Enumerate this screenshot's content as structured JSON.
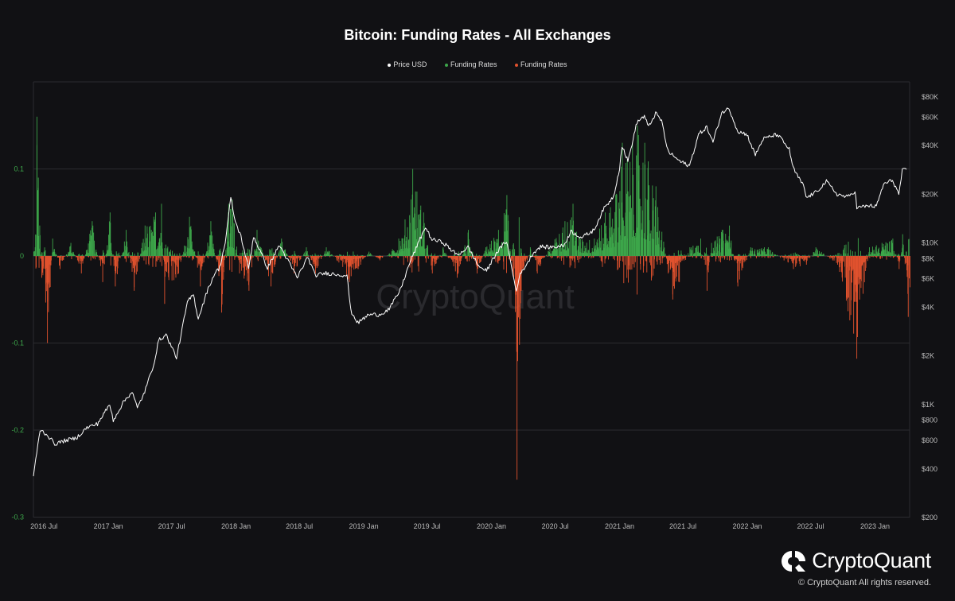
{
  "chart_data": {
    "type": "bar+line",
    "title": "Bitcoin: Funding Rates - All Exchanges",
    "legend": [
      {
        "name": "Price USD",
        "color": "#ffffff"
      },
      {
        "name": "Funding Rates",
        "color": "#3da64a"
      },
      {
        "name": "Funding Rates",
        "color": "#e0522e"
      }
    ],
    "legend_position": "top-center",
    "x_axis": {
      "range": [
        "2016-06-01",
        "2023-04-10"
      ],
      "ticks": [
        {
          "date": "2016-07-01",
          "label": "2016 Jul"
        },
        {
          "date": "2017-01-01",
          "label": "2017 Jan"
        },
        {
          "date": "2017-07-01",
          "label": "2017 Jul"
        },
        {
          "date": "2018-01-01",
          "label": "2018 Jan"
        },
        {
          "date": "2018-07-01",
          "label": "2018 Jul"
        },
        {
          "date": "2019-01-01",
          "label": "2019 Jan"
        },
        {
          "date": "2019-07-01",
          "label": "2019 Jul"
        },
        {
          "date": "2020-01-01",
          "label": "2020 Jan"
        },
        {
          "date": "2020-07-01",
          "label": "2020 Jul"
        },
        {
          "date": "2021-01-01",
          "label": "2021 Jan"
        },
        {
          "date": "2021-07-01",
          "label": "2021 Jul"
        },
        {
          "date": "2022-01-01",
          "label": "2022 Jan"
        },
        {
          "date": "2022-07-01",
          "label": "2022 Jul"
        },
        {
          "date": "2023-01-01",
          "label": "2023 Jan"
        }
      ]
    },
    "y_left": {
      "range": [
        -0.3,
        0.2
      ],
      "ticks": [
        {
          "value": 0.1,
          "label": "0.1"
        },
        {
          "value": 0,
          "label": "0"
        },
        {
          "value": -0.1,
          "label": "-0.1"
        },
        {
          "value": -0.2,
          "label": "-0.2"
        },
        {
          "value": -0.3,
          "label": "-0.3"
        }
      ]
    },
    "y_right": {
      "scale": "log",
      "range": [
        200,
        80000
      ],
      "ticks": [
        {
          "value": 80000,
          "label": "$80K"
        },
        {
          "value": 60000,
          "label": "$60K"
        },
        {
          "value": 40000,
          "label": "$40K"
        },
        {
          "value": 20000,
          "label": "$20K"
        },
        {
          "value": 10000,
          "label": "$10K"
        },
        {
          "value": 8000,
          "label": "$8K"
        },
        {
          "value": 6000,
          "label": "$6K"
        },
        {
          "value": 4000,
          "label": "$4K"
        },
        {
          "value": 2000,
          "label": "$2K"
        },
        {
          "value": 1000,
          "label": "$1K"
        },
        {
          "value": 800,
          "label": "$800"
        },
        {
          "value": 600,
          "label": "$600"
        },
        {
          "value": 400,
          "label": "$400"
        },
        {
          "value": 200,
          "label": "$200"
        }
      ]
    },
    "grid": true,
    "watermark": "CryptoQuant",
    "price_series": {
      "name": "Price USD",
      "points": [
        [
          "2016-06-01",
          360
        ],
        [
          "2016-06-20",
          700
        ],
        [
          "2016-07-10",
          650
        ],
        [
          "2016-08-01",
          570
        ],
        [
          "2016-09-01",
          600
        ],
        [
          "2016-10-01",
          620
        ],
        [
          "2016-11-01",
          720
        ],
        [
          "2016-12-01",
          760
        ],
        [
          "2017-01-05",
          1000
        ],
        [
          "2017-01-15",
          800
        ],
        [
          "2017-02-15",
          1050
        ],
        [
          "2017-03-10",
          1200
        ],
        [
          "2017-03-25",
          950
        ],
        [
          "2017-04-15",
          1200
        ],
        [
          "2017-05-10",
          1750
        ],
        [
          "2017-05-25",
          2500
        ],
        [
          "2017-06-15",
          2700
        ],
        [
          "2017-07-15",
          1950
        ],
        [
          "2017-08-15",
          4300
        ],
        [
          "2017-09-01",
          4800
        ],
        [
          "2017-09-15",
          3400
        ],
        [
          "2017-10-10",
          5000
        ],
        [
          "2017-11-01",
          6500
        ],
        [
          "2017-11-15",
          7000
        ],
        [
          "2017-12-01",
          10000
        ],
        [
          "2017-12-17",
          19000
        ],
        [
          "2017-12-30",
          13500
        ],
        [
          "2018-01-15",
          11000
        ],
        [
          "2018-02-06",
          6900
        ],
        [
          "2018-02-20",
          11000
        ],
        [
          "2018-03-10",
          9000
        ],
        [
          "2018-04-01",
          7000
        ],
        [
          "2018-05-05",
          9700
        ],
        [
          "2018-06-25",
          6100
        ],
        [
          "2018-07-25",
          8200
        ],
        [
          "2018-08-15",
          6300
        ],
        [
          "2018-09-15",
          6500
        ],
        [
          "2018-10-15",
          6400
        ],
        [
          "2018-11-14",
          6300
        ],
        [
          "2018-11-25",
          3800
        ],
        [
          "2018-12-15",
          3200
        ],
        [
          "2019-01-15",
          3600
        ],
        [
          "2019-02-15",
          3600
        ],
        [
          "2019-03-15",
          3900
        ],
        [
          "2019-04-15",
          5100
        ],
        [
          "2019-05-15",
          7800
        ],
        [
          "2019-06-26",
          12500
        ],
        [
          "2019-07-15",
          10500
        ],
        [
          "2019-08-15",
          10100
        ],
        [
          "2019-09-25",
          8400
        ],
        [
          "2019-10-26",
          9400
        ],
        [
          "2019-11-25",
          7200
        ],
        [
          "2019-12-18",
          6700
        ],
        [
          "2020-01-15",
          8700
        ],
        [
          "2020-02-13",
          10300
        ],
        [
          "2020-03-12",
          5000
        ],
        [
          "2020-03-20",
          6200
        ],
        [
          "2020-04-30",
          8700
        ],
        [
          "2020-05-20",
          9500
        ],
        [
          "2020-06-15",
          9400
        ],
        [
          "2020-07-25",
          9600
        ],
        [
          "2020-08-15",
          11800
        ],
        [
          "2020-09-15",
          10800
        ],
        [
          "2020-10-20",
          12000
        ],
        [
          "2020-11-15",
          16000
        ],
        [
          "2020-12-15",
          19500
        ],
        [
          "2021-01-01",
          29000
        ],
        [
          "2021-01-08",
          40000
        ],
        [
          "2021-01-25",
          32000
        ],
        [
          "2021-02-20",
          56000
        ],
        [
          "2021-03-13",
          61000
        ],
        [
          "2021-03-25",
          52000
        ],
        [
          "2021-04-14",
          63500
        ],
        [
          "2021-05-01",
          57000
        ],
        [
          "2021-05-19",
          37000
        ],
        [
          "2021-06-22",
          32000
        ],
        [
          "2021-07-20",
          30000
        ],
        [
          "2021-08-15",
          47000
        ],
        [
          "2021-09-07",
          52000
        ],
        [
          "2021-09-25",
          42000
        ],
        [
          "2021-10-20",
          64000
        ],
        [
          "2021-11-10",
          68000
        ],
        [
          "2021-12-05",
          49000
        ],
        [
          "2021-12-31",
          47000
        ],
        [
          "2022-01-24",
          35000
        ],
        [
          "2022-02-15",
          44000
        ],
        [
          "2022-03-28",
          47000
        ],
        [
          "2022-05-01",
          38000
        ],
        [
          "2022-05-12",
          29000
        ],
        [
          "2022-06-13",
          22000
        ],
        [
          "2022-06-18",
          19000
        ],
        [
          "2022-07-15",
          20500
        ],
        [
          "2022-08-15",
          24000
        ],
        [
          "2022-09-15",
          20000
        ],
        [
          "2022-10-15",
          19200
        ],
        [
          "2022-11-05",
          21000
        ],
        [
          "2022-11-10",
          16500
        ],
        [
          "2022-12-15",
          17000
        ],
        [
          "2023-01-05",
          16800
        ],
        [
          "2023-01-25",
          23000
        ],
        [
          "2023-02-20",
          24500
        ],
        [
          "2023-03-10",
          20000
        ],
        [
          "2023-03-20",
          28000
        ],
        [
          "2023-04-01",
          28500
        ]
      ]
    },
    "funding_rates_series": {
      "name": "Funding Rates",
      "positive_color": "#3da64a",
      "negative_color": "#e0522e",
      "points": [
        [
          "2016-06-05",
          0.01
        ],
        [
          "2016-06-10",
          0.16
        ],
        [
          "2016-06-14",
          0.09
        ],
        [
          "2016-06-18",
          0.035
        ],
        [
          "2016-06-24",
          -0.025
        ],
        [
          "2016-07-10",
          -0.1
        ],
        [
          "2016-07-25",
          0.02
        ],
        [
          "2016-08-15",
          -0.015
        ],
        [
          "2016-09-15",
          0.015
        ],
        [
          "2016-10-15",
          -0.02
        ],
        [
          "2016-11-15",
          0.04
        ],
        [
          "2016-12-15",
          -0.03
        ],
        [
          "2017-01-05",
          0.05
        ],
        [
          "2017-01-20",
          -0.035
        ],
        [
          "2017-02-20",
          0.03
        ],
        [
          "2017-03-15",
          -0.04
        ],
        [
          "2017-04-15",
          0.035
        ],
        [
          "2017-05-15",
          0.05
        ],
        [
          "2017-06-01",
          0.06
        ],
        [
          "2017-06-10",
          -0.055
        ],
        [
          "2017-07-20",
          -0.02
        ],
        [
          "2017-08-20",
          0.045
        ],
        [
          "2017-09-20",
          -0.035
        ],
        [
          "2017-10-20",
          0.04
        ],
        [
          "2017-11-20",
          -0.065
        ],
        [
          "2017-12-10",
          0.06
        ],
        [
          "2017-12-20",
          0.065
        ],
        [
          "2018-01-10",
          -0.02
        ],
        [
          "2018-02-06",
          -0.04
        ],
        [
          "2018-03-01",
          0.03
        ],
        [
          "2018-04-10",
          -0.035
        ],
        [
          "2018-05-10",
          0.02
        ],
        [
          "2018-06-15",
          -0.02
        ],
        [
          "2018-07-20",
          0.01
        ],
        [
          "2018-08-15",
          -0.02
        ],
        [
          "2018-09-15",
          0.01
        ],
        [
          "2018-10-15",
          -0.005
        ],
        [
          "2018-11-20",
          -0.03
        ],
        [
          "2018-12-15",
          -0.015
        ],
        [
          "2019-01-15",
          0.005
        ],
        [
          "2019-02-15",
          -0.005
        ],
        [
          "2019-03-15",
          0.003
        ],
        [
          "2019-04-10",
          0.02
        ],
        [
          "2019-05-15",
          0.065
        ],
        [
          "2019-05-20",
          0.1
        ],
        [
          "2019-06-20",
          0.05
        ],
        [
          "2019-07-15",
          -0.02
        ],
        [
          "2019-08-15",
          0.01
        ],
        [
          "2019-09-24",
          -0.025
        ],
        [
          "2019-10-26",
          0.03
        ],
        [
          "2019-11-20",
          -0.02
        ],
        [
          "2019-12-15",
          0.01
        ],
        [
          "2020-01-20",
          0.03
        ],
        [
          "2020-02-13",
          0.07
        ],
        [
          "2020-03-12",
          -0.11
        ],
        [
          "2020-03-13",
          -0.257
        ],
        [
          "2020-03-25",
          -0.04
        ],
        [
          "2020-04-20",
          0.01
        ],
        [
          "2020-05-10",
          -0.02
        ],
        [
          "2020-06-15",
          0.01
        ],
        [
          "2020-07-28",
          0.04
        ],
        [
          "2020-08-20",
          0.06
        ],
        [
          "2020-09-10",
          0.02
        ],
        [
          "2020-10-20",
          0.02
        ],
        [
          "2020-11-20",
          0.05
        ],
        [
          "2020-12-20",
          0.07
        ],
        [
          "2021-01-08",
          0.13
        ],
        [
          "2021-01-22",
          0.11
        ],
        [
          "2021-02-20",
          0.15
        ],
        [
          "2021-03-13",
          0.13
        ],
        [
          "2021-04-14",
          0.08
        ],
        [
          "2021-05-19",
          -0.02
        ],
        [
          "2021-06-01",
          -0.05
        ],
        [
          "2021-06-20",
          -0.03
        ],
        [
          "2021-07-20",
          0.01
        ],
        [
          "2021-08-20",
          0.02
        ],
        [
          "2021-09-07",
          -0.04
        ],
        [
          "2021-09-20",
          0.015
        ],
        [
          "2021-10-20",
          0.03
        ],
        [
          "2021-11-10",
          0.035
        ],
        [
          "2021-12-04",
          -0.035
        ],
        [
          "2022-01-10",
          0.01
        ],
        [
          "2022-03-01",
          0.01
        ],
        [
          "2022-05-12",
          -0.015
        ],
        [
          "2022-06-18",
          -0.01
        ],
        [
          "2022-07-15",
          0.01
        ],
        [
          "2022-09-15",
          -0.01
        ],
        [
          "2022-11-09",
          -0.118
        ],
        [
          "2022-12-15",
          0.01
        ],
        [
          "2023-01-20",
          0.015
        ],
        [
          "2023-02-20",
          0.02
        ],
        [
          "2023-03-10",
          -0.015
        ],
        [
          "2023-03-20",
          0.025
        ],
        [
          "2023-04-05",
          -0.07
        ]
      ]
    }
  },
  "brand": {
    "name": "CryptoQuant",
    "copyright": "© CryptoQuant All rights reserved."
  }
}
